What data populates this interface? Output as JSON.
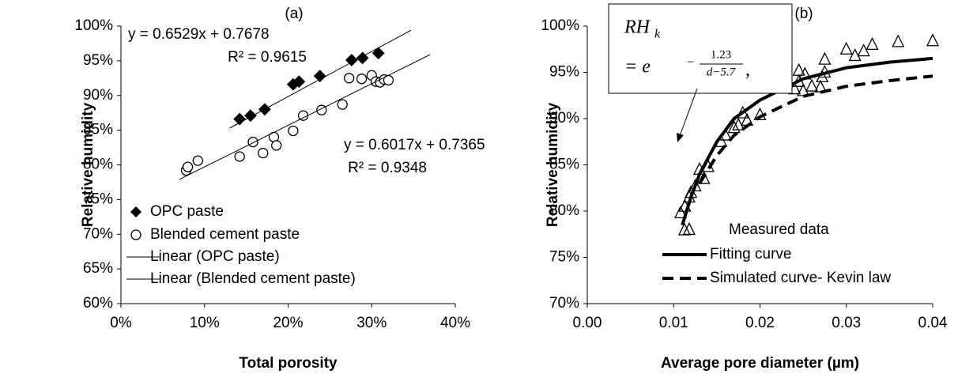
{
  "chart_data": [
    {
      "type": "scatter",
      "panel_label": "(a)",
      "x_label": "Total porosity",
      "y_label": "Relative humidity",
      "xlim": [
        0,
        40
      ],
      "xticks": [
        {
          "value": 0,
          "label": "0%"
        },
        {
          "value": 10,
          "label": "10%"
        },
        {
          "value": 20,
          "label": "20%"
        },
        {
          "value": 30,
          "label": "30%"
        },
        {
          "value": 40,
          "label": "40%"
        }
      ],
      "ylim": [
        60,
        100
      ],
      "yticks": [
        {
          "value": 60,
          "label": "60%"
        },
        {
          "value": 65,
          "label": "65%"
        },
        {
          "value": 70,
          "label": "70%"
        },
        {
          "value": 75,
          "label": "75%"
        },
        {
          "value": 80,
          "label": "80%"
        },
        {
          "value": 85,
          "label": "85%"
        },
        {
          "value": 90,
          "label": "90%"
        },
        {
          "value": 95,
          "label": "95%"
        },
        {
          "value": 100,
          "label": "100%"
        }
      ],
      "series": [
        {
          "name": "OPC paste",
          "color": "#000000",
          "marker": "diamond",
          "x": [
            14.2,
            15.5,
            17.2,
            20.6,
            21.3,
            23.8,
            27.6,
            28.9,
            30.8
          ],
          "values": [
            86.6,
            87.1,
            88.0,
            91.6,
            92.0,
            92.8,
            95.1,
            95.4,
            96.1
          ]
        },
        {
          "name": "Blended cement paste",
          "color": "#000000",
          "marker": "circle",
          "x": [
            7.8,
            8.0,
            9.2,
            14.2,
            15.8,
            17.0,
            18.3,
            18.6,
            20.6,
            21.8,
            24.0,
            26.5,
            27.3,
            28.8,
            30.0,
            30.5,
            31.0,
            31.5,
            32.0
          ],
          "values": [
            79.2,
            79.7,
            80.6,
            81.2,
            83.3,
            81.7,
            84.0,
            82.8,
            84.9,
            87.1,
            87.9,
            88.7,
            92.5,
            92.4,
            92.9,
            92.0,
            91.9,
            92.3,
            92.2
          ]
        },
        {
          "name": "Linear (OPC paste)",
          "color": "#000000",
          "line": 1,
          "x": [
            13,
            34.7
          ],
          "values": [
            85.3,
            99.4
          ]
        },
        {
          "name": "Linear (Blended cement paste)",
          "color": "#000000",
          "line": 1,
          "x": [
            7,
            37
          ],
          "values": [
            77.9,
            95.9
          ]
        }
      ],
      "annotations": [
        "y = 0.6529x + 0.7678",
        "R² = 0.9615",
        "y = 0.6017x + 0.7365",
        "R² = 0.9348"
      ]
    },
    {
      "type": "scatter",
      "panel_label": "(b)",
      "x_label": "Average pore diameter (µm)",
      "y_label": "Relative humidity",
      "xlim": [
        0,
        0.04
      ],
      "xticks": [
        {
          "value": 0,
          "label": "0.00"
        },
        {
          "value": 0.01,
          "label": "0.01"
        },
        {
          "value": 0.02,
          "label": "0.02"
        },
        {
          "value": 0.03,
          "label": "0.03"
        },
        {
          "value": 0.04,
          "label": "0.04"
        }
      ],
      "ylim": [
        70,
        100
      ],
      "yticks": [
        {
          "value": 70,
          "label": "70%"
        },
        {
          "value": 75,
          "label": "75%"
        },
        {
          "value": 80,
          "label": "80%"
        },
        {
          "value": 85,
          "label": "85%"
        },
        {
          "value": 90,
          "label": "90%"
        },
        {
          "value": 95,
          "label": "95%"
        },
        {
          "value": 100,
          "label": "100%"
        }
      ],
      "series": [
        {
          "name": "Measured data",
          "color": "#000000",
          "marker": "triangle",
          "x": [
            0.0108,
            0.0113,
            0.0118,
            0.012,
            0.0125,
            0.013,
            0.0135,
            0.014,
            0.0118,
            0.0155,
            0.016,
            0.017,
            0.0175,
            0.018,
            0.0185,
            0.0195,
            0.02,
            0.021,
            0.024,
            0.0245,
            0.0245,
            0.025,
            0.0252,
            0.026,
            0.027,
            0.0272,
            0.0275,
            0.0275,
            0.03,
            0.031,
            0.032,
            0.033,
            0.036,
            0.04
          ],
          "values": [
            79.8,
            80.5,
            81.5,
            82,
            82.7,
            84.5,
            83.5,
            84.8,
            78,
            87.5,
            88.2,
            89,
            89.3,
            90.6,
            89.8,
            93.3,
            90.4,
            93.4,
            93.2,
            94,
            95.2,
            93,
            94.8,
            93.5,
            93.4,
            94.5,
            96.4,
            95,
            97.5,
            96.8,
            97.3,
            98,
            98.3,
            98.4
          ]
        },
        {
          "name": "Fitting curve",
          "color": "#000000",
          "line": 4,
          "x": [
            0.011,
            0.012,
            0.013,
            0.015,
            0.017,
            0.02,
            0.025,
            0.03,
            0.035,
            0.04
          ],
          "values": [
            78.5,
            81.5,
            84,
            87.5,
            90,
            92,
            94.3,
            95.5,
            96.1,
            96.5
          ]
        },
        {
          "name": "Simulated curve- Kevin law",
          "color": "#000000",
          "line": 4,
          "dash": true,
          "x": [
            0.013,
            0.015,
            0.017,
            0.02,
            0.025,
            0.03,
            0.035,
            0.04
          ],
          "values": [
            83,
            86,
            88.2,
            90.2,
            92.4,
            93.5,
            94.1,
            94.6
          ]
        }
      ],
      "formula": {
        "lhs": "RH",
        "sub": "k",
        "eq": "= e",
        "sign": "−",
        "num": "1.23",
        "den": "d−5.7",
        "tail": ","
      }
    }
  ]
}
